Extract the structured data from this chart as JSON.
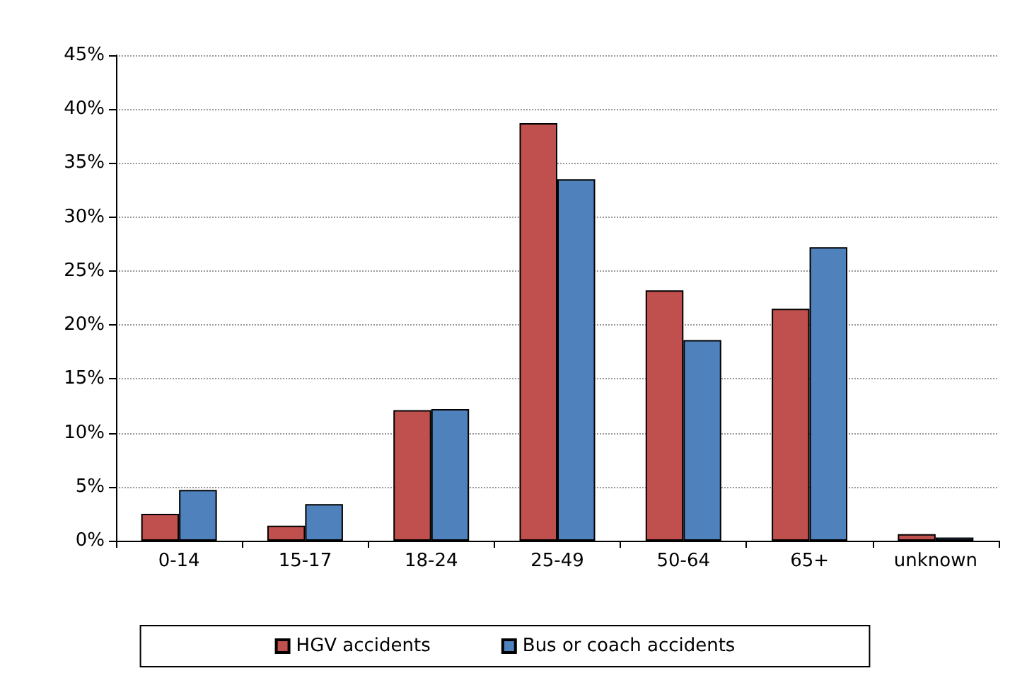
{
  "chart_data": {
    "type": "bar",
    "categories": [
      "0-14",
      "15-17",
      "18-24",
      "25-49",
      "50-64",
      "65+",
      "unknown"
    ],
    "series": [
      {
        "name": "HGV accidents",
        "color": "#c0504d",
        "values": [
          2.5,
          1.4,
          12.1,
          38.7,
          23.2,
          21.5,
          0.6
        ]
      },
      {
        "name": "Bus or coach accidents",
        "color": "#4f81bd",
        "values": [
          4.7,
          3.4,
          12.2,
          33.5,
          18.6,
          27.2,
          0.3
        ]
      }
    ],
    "ylim": [
      0,
      45
    ],
    "yticks": [
      {
        "value": 0,
        "label": "0%"
      },
      {
        "value": 5,
        "label": "5%"
      },
      {
        "value": 10,
        "label": "10%"
      },
      {
        "value": 15,
        "label": "15%"
      },
      {
        "value": 20,
        "label": "20%"
      },
      {
        "value": 25,
        "label": "25%"
      },
      {
        "value": 30,
        "label": "30%"
      },
      {
        "value": 35,
        "label": "35%"
      },
      {
        "value": 40,
        "label": "40%"
      },
      {
        "value": 45,
        "label": "45%"
      }
    ],
    "grid": "y",
    "legend": "bottom"
  }
}
